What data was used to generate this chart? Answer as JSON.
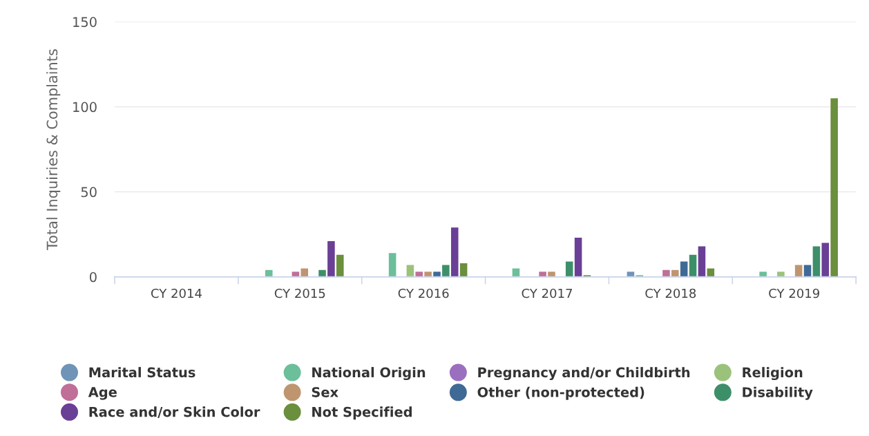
{
  "chart_data": {
    "type": "bar",
    "ylabel": "Total Inquiries & Complaints",
    "categories": [
      "CY 2014",
      "CY 2015",
      "CY 2016",
      "CY 2017",
      "CY 2018",
      "CY 2019"
    ],
    "ylim": [
      0,
      150
    ],
    "yticks": [
      0,
      50,
      100,
      150
    ],
    "grid": "y",
    "legend": "bottom",
    "series": [
      {
        "name": "Marital Status",
        "color": "#7094b8",
        "values": [
          0,
          0,
          0,
          0,
          3,
          0
        ]
      },
      {
        "name": "National Origin",
        "color": "#6bbf9a",
        "values": [
          0,
          4,
          14,
          5,
          1,
          3
        ]
      },
      {
        "name": "Pregnancy and/or Childbirth",
        "color": "#9b6fbf",
        "values": [
          0,
          0,
          0,
          0,
          0,
          0
        ]
      },
      {
        "name": "Religion",
        "color": "#9bc27a",
        "values": [
          0,
          0,
          7,
          0,
          0,
          3
        ]
      },
      {
        "name": "Age",
        "color": "#bf6f98",
        "values": [
          0,
          3,
          3,
          3,
          4,
          0
        ]
      },
      {
        "name": "Sex",
        "color": "#bf956f",
        "values": [
          0,
          5,
          3,
          3,
          4,
          7
        ]
      },
      {
        "name": "Other (non-protected)",
        "color": "#3f6a96",
        "values": [
          0,
          0,
          3,
          0,
          9,
          7
        ]
      },
      {
        "name": "Disability",
        "color": "#3d8f6a",
        "values": [
          0,
          4,
          7,
          9,
          13,
          18
        ]
      },
      {
        "name": "Race and/or Skin Color",
        "color": "#6a3f96",
        "values": [
          0,
          21,
          29,
          23,
          18,
          20
        ]
      },
      {
        "name": "Not Specified",
        "color": "#6a8f3d",
        "values": [
          0,
          13,
          8,
          1,
          5,
          105
        ]
      }
    ]
  }
}
